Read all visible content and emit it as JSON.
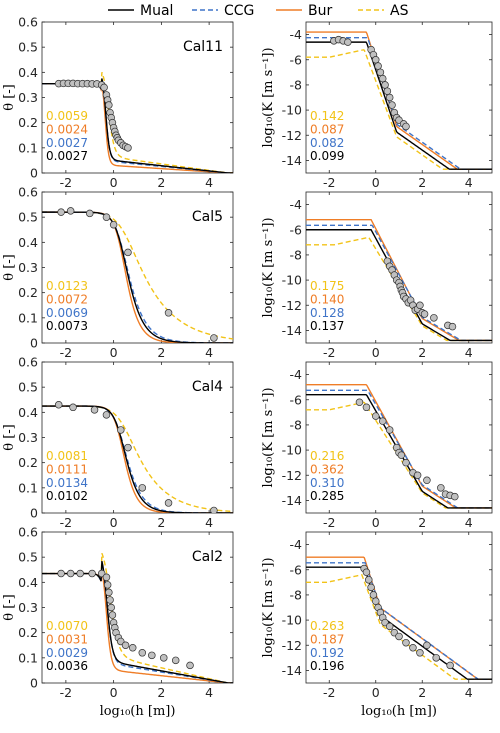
{
  "colors": {
    "Mual": "#000000",
    "CCG": "#3f74c8",
    "Bur": "#ef7d27",
    "AS": "#f2c318"
  },
  "legend": [
    {
      "name": "Mual",
      "style": "solid",
      "color": "#000000"
    },
    {
      "name": "CCG",
      "style": "dashed",
      "color": "#3f74c8"
    },
    {
      "name": "Bur",
      "style": "solid",
      "color": "#ef7d27"
    },
    {
      "name": "AS",
      "style": "dashed",
      "color": "#f2c318"
    }
  ],
  "axes_text": {
    "theta_ylabel": "θ [-]",
    "k_ylabel": "log₁₀(K [m s⁻¹])",
    "xlabel": "log₁₀(h [m])"
  },
  "ticks": {
    "x": [
      "-2",
      "0",
      "2",
      "4"
    ],
    "theta": [
      "0",
      "0.1",
      "0.2",
      "0.3",
      "0.4",
      "0.5",
      "0.6"
    ],
    "k": [
      "-14",
      "-12",
      "-10",
      "-8",
      "-6",
      "-4"
    ]
  },
  "chart_data": [
    {
      "type": "line",
      "panel": "Cal11-theta",
      "annotation": "Cal11",
      "xlim": [
        -3,
        5
      ],
      "ylim": [
        0,
        0.6
      ],
      "stats": [
        "0.0059",
        "0.0024",
        "0.0027",
        "0.0027"
      ],
      "params": {
        "ths": 0.355,
        "thr": 0.0,
        "alpha": 2.2,
        "n": 6.0,
        "tail": 0.06
      },
      "obs": [
        [
          -2.3,
          0.355
        ],
        [
          -2.1,
          0.356
        ],
        [
          -1.9,
          0.356
        ],
        [
          -1.7,
          0.356
        ],
        [
          -1.5,
          0.355
        ],
        [
          -1.3,
          0.355
        ],
        [
          -1.1,
          0.355
        ],
        [
          -0.9,
          0.354
        ],
        [
          -0.7,
          0.354
        ],
        [
          -0.5,
          0.35
        ],
        [
          -0.4,
          0.34
        ],
        [
          -0.3,
          0.31
        ],
        [
          -0.25,
          0.29
        ],
        [
          -0.2,
          0.27
        ],
        [
          -0.15,
          0.24
        ],
        [
          -0.1,
          0.22
        ],
        [
          -0.05,
          0.2
        ],
        [
          0.0,
          0.18
        ],
        [
          0.05,
          0.165
        ],
        [
          0.1,
          0.15
        ],
        [
          0.15,
          0.14
        ],
        [
          0.2,
          0.13
        ],
        [
          0.3,
          0.12
        ],
        [
          0.4,
          0.11
        ],
        [
          0.5,
          0.105
        ],
        [
          0.6,
          0.1
        ]
      ]
    },
    {
      "type": "line",
      "panel": "Cal11-K",
      "xlim": [
        -3,
        5
      ],
      "ylim": [
        -15,
        -3
      ],
      "stats": [
        "0.142",
        "0.087",
        "0.082",
        "0.099"
      ],
      "params": {
        "ks": -4.6,
        "kend": -14.7,
        "h0": -0.4,
        "h1": 0.9,
        "s1": -5.5,
        "s2": -1.3
      },
      "obs": [
        [
          -1.8,
          -4.5
        ],
        [
          -1.6,
          -4.4
        ],
        [
          -1.4,
          -4.5
        ],
        [
          -1.2,
          -4.6
        ],
        [
          -0.2,
          -5.2
        ],
        [
          -0.1,
          -5.6
        ],
        [
          0.0,
          -6.0
        ],
        [
          0.1,
          -6.5
        ],
        [
          0.2,
          -7.0
        ],
        [
          0.3,
          -7.5
        ],
        [
          0.4,
          -8.0
        ],
        [
          0.5,
          -8.5
        ],
        [
          0.6,
          -9.0
        ],
        [
          0.7,
          -9.6
        ],
        [
          0.8,
          -10.2
        ],
        [
          0.9,
          -10.6
        ],
        [
          1.0,
          -10.8
        ],
        [
          1.2,
          -11.1
        ],
        [
          1.3,
          -11.3
        ]
      ]
    },
    {
      "type": "line",
      "panel": "Cal5-theta",
      "annotation": "Cal5",
      "xlim": [
        -3,
        5
      ],
      "ylim": [
        0,
        0.6
      ],
      "stats": [
        "0.0123",
        "0.0072",
        "0.0069",
        "0.0073"
      ],
      "params": {
        "ths": 0.52,
        "thr": 0.0,
        "alpha": 0.45,
        "n": 1.9,
        "tail": 0.0
      },
      "obs": [
        [
          -2.2,
          0.52
        ],
        [
          -1.8,
          0.525
        ],
        [
          -1.0,
          0.515
        ],
        [
          -0.3,
          0.5
        ],
        [
          0.0,
          0.47
        ],
        [
          0.6,
          0.36
        ],
        [
          2.3,
          0.12
        ],
        [
          4.2,
          0.02
        ]
      ]
    },
    {
      "type": "line",
      "panel": "Cal5-K",
      "xlim": [
        -3,
        5
      ],
      "ylim": [
        -15,
        -3
      ],
      "stats": [
        "0.175",
        "0.140",
        "0.128",
        "0.137"
      ],
      "params": {
        "ks": -6.0,
        "kend": -14.8,
        "h0": -0.2,
        "h1": 2.0,
        "s1": -3.4,
        "s2": -1.1
      },
      "obs": [
        [
          0.5,
          -8.5
        ],
        [
          0.6,
          -8.9
        ],
        [
          0.7,
          -9.2
        ],
        [
          0.8,
          -9.6
        ],
        [
          0.9,
          -10.0
        ],
        [
          1.0,
          -10.2
        ],
        [
          1.05,
          -10.5
        ],
        [
          1.1,
          -10.8
        ],
        [
          1.15,
          -11.0
        ],
        [
          1.2,
          -11.3
        ],
        [
          1.3,
          -11.5
        ],
        [
          1.4,
          -11.8
        ],
        [
          1.5,
          -11.6
        ],
        [
          1.6,
          -12.0
        ],
        [
          1.7,
          -12.4
        ],
        [
          1.8,
          -12.3
        ],
        [
          1.9,
          -12.0
        ],
        [
          2.0,
          -12.6
        ],
        [
          2.1,
          -12.7
        ],
        [
          2.5,
          -13.0
        ],
        [
          3.1,
          -13.6
        ],
        [
          3.3,
          -13.7
        ]
      ]
    },
    {
      "type": "line",
      "panel": "Cal4-theta",
      "annotation": "Cal4",
      "xlim": [
        -3,
        5
      ],
      "ylim": [
        0,
        0.6
      ],
      "stats": [
        "0.0081",
        "0.0111",
        "0.0134",
        "0.0102"
      ],
      "params": {
        "ths": 0.425,
        "thr": 0.0,
        "alpha": 0.5,
        "n": 2.0,
        "tail": 0.0
      },
      "obs": [
        [
          -2.3,
          0.43
        ],
        [
          -1.7,
          0.42
        ],
        [
          -0.8,
          0.41
        ],
        [
          -0.3,
          0.39
        ],
        [
          0.3,
          0.33
        ],
        [
          0.6,
          0.26
        ],
        [
          1.2,
          0.1
        ],
        [
          2.3,
          0.04
        ],
        [
          4.2,
          0.01
        ]
      ]
    },
    {
      "type": "line",
      "panel": "Cal4-K",
      "xlim": [
        -3,
        5
      ],
      "ylim": [
        -15,
        -3
      ],
      "stats": [
        "0.216",
        "0.362",
        "0.310",
        "0.285"
      ],
      "params": {
        "ks": -5.6,
        "kend": -14.6,
        "h0": -0.4,
        "h1": 2.0,
        "s1": -3.2,
        "s2": -1.2
      },
      "obs": [
        [
          -0.7,
          -6.2
        ],
        [
          -0.4,
          -6.6
        ],
        [
          0.0,
          -7.3
        ],
        [
          0.3,
          -7.7
        ],
        [
          0.6,
          -8.4
        ],
        [
          0.9,
          -9.8
        ],
        [
          1.0,
          -10.2
        ],
        [
          1.1,
          -10.4
        ],
        [
          1.3,
          -11.0
        ],
        [
          1.6,
          -11.8
        ],
        [
          1.8,
          -12.0
        ],
        [
          2.2,
          -12.4
        ],
        [
          2.8,
          -13.0
        ],
        [
          3.0,
          -13.5
        ],
        [
          3.2,
          -13.6
        ],
        [
          3.4,
          -13.7
        ]
      ]
    },
    {
      "type": "line",
      "panel": "Cal2-theta",
      "annotation": "Cal2",
      "xlim": [
        -3,
        5
      ],
      "ylim": [
        0,
        0.6
      ],
      "stats": [
        "0.0070",
        "0.0031",
        "0.0029",
        "0.0036"
      ],
      "params": {
        "ths": 0.435,
        "thr": 0.0,
        "alpha": 2.0,
        "n": 4.5,
        "tail": 0.1
      },
      "obs": [
        [
          -2.2,
          0.435
        ],
        [
          -1.8,
          0.435
        ],
        [
          -1.4,
          0.435
        ],
        [
          -0.9,
          0.435
        ],
        [
          -0.5,
          0.435
        ],
        [
          -0.3,
          0.42
        ],
        [
          -0.25,
          0.39
        ],
        [
          -0.2,
          0.36
        ],
        [
          -0.15,
          0.33
        ],
        [
          -0.1,
          0.3
        ],
        [
          -0.05,
          0.27
        ],
        [
          0.0,
          0.24
        ],
        [
          0.05,
          0.22
        ],
        [
          0.1,
          0.2
        ],
        [
          0.2,
          0.18
        ],
        [
          0.3,
          0.165
        ],
        [
          0.5,
          0.15
        ],
        [
          0.8,
          0.14
        ],
        [
          1.2,
          0.12
        ],
        [
          1.6,
          0.11
        ],
        [
          2.1,
          0.1
        ],
        [
          2.6,
          0.09
        ],
        [
          3.2,
          0.07
        ]
      ]
    },
    {
      "type": "line",
      "panel": "Cal2-K",
      "xlim": [
        -3,
        5
      ],
      "ylim": [
        -15,
        -3
      ],
      "stats": [
        "0.263",
        "0.187",
        "0.192",
        "0.196"
      ],
      "params": {
        "ks": -5.8,
        "kend": -14.7,
        "h0": -0.5,
        "h1": 0.2,
        "s1": -5.5,
        "s2": -1.35
      },
      "obs": [
        [
          -0.5,
          -5.9
        ],
        [
          -0.4,
          -6.2
        ],
        [
          -0.3,
          -6.8
        ],
        [
          -0.2,
          -7.4
        ],
        [
          -0.1,
          -8.0
        ],
        [
          0.0,
          -8.5
        ],
        [
          0.1,
          -9.0
        ],
        [
          0.2,
          -9.4
        ],
        [
          0.3,
          -9.8
        ],
        [
          0.4,
          -10.2
        ],
        [
          0.6,
          -10.5
        ],
        [
          0.8,
          -11.0
        ],
        [
          1.0,
          -11.3
        ],
        [
          1.3,
          -11.8
        ],
        [
          1.6,
          -12.2
        ],
        [
          1.9,
          -12.6
        ],
        [
          2.2,
          -12.0
        ],
        [
          2.6,
          -13.0
        ],
        [
          3.2,
          -13.6
        ]
      ]
    }
  ]
}
